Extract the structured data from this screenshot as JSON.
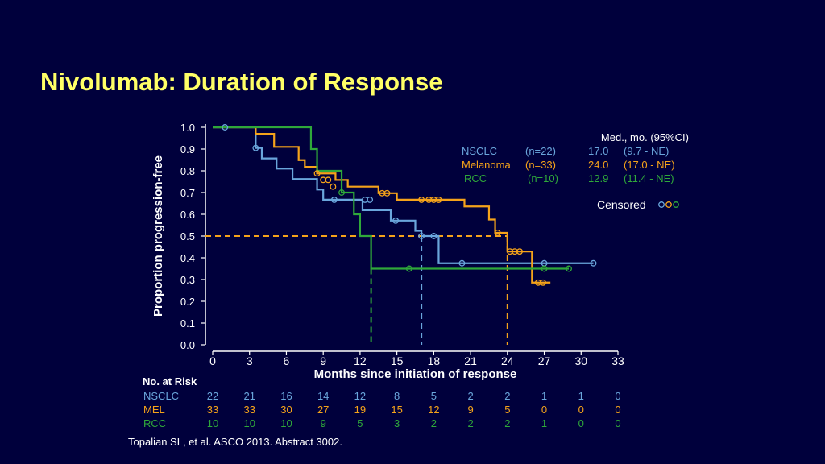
{
  "slide": {
    "title": "Nivolumab: Duration of Response",
    "reference": "Topalian SL, et al. ASCO 2013. Abstract 3002."
  },
  "colors": {
    "background": "#00003c",
    "title": "#ffff66",
    "NSCLC": "#6aa6dc",
    "MEL": "#f5a31a",
    "RCC": "#2fa83a",
    "text": "#ffffff"
  },
  "chart_data": {
    "type": "line",
    "subtype": "kaplan-meier step",
    "xlabel": "Months since initiation of response",
    "ylabel": "Proportion progression-free",
    "xlim": [
      0,
      33
    ],
    "ylim": [
      0,
      1.0
    ],
    "x_ticks": [
      "0",
      "3",
      "6",
      "9",
      "12",
      "15",
      "18",
      "21",
      "24",
      "27",
      "30",
      "33"
    ],
    "y_ticks": [
      "0.0",
      "0.1",
      "0.2",
      "0.3",
      "0.4",
      "0.5",
      "0.6",
      "0.7",
      "0.8",
      "0.9",
      "1.0"
    ],
    "median_line_y": 0.5,
    "legend": {
      "header": "Med., mo. (95%CI)",
      "rows": [
        {
          "name": "NSCLC",
          "n": "(n=22)",
          "median": "17.0",
          "ci": "(9.7 - NE)",
          "color": "#6aa6dc"
        },
        {
          "name": "Melanoma",
          "n": "(n=33)",
          "median": "24.0",
          "ci": "(17.0 - NE)",
          "color": "#f5a31a"
        },
        {
          "name": "RCC",
          "n": "(n=10)",
          "median": "12.9",
          "ci": "(11.4 - NE)",
          "color": "#2fa83a"
        }
      ],
      "censored_label": "Censored"
    },
    "series": [
      {
        "name": "NSCLC",
        "color": "#6aa6dc",
        "steps": [
          [
            0,
            1.0
          ],
          [
            3.5,
            0.905
          ],
          [
            4.0,
            0.857
          ],
          [
            5.2,
            0.81
          ],
          [
            6.5,
            0.762
          ],
          [
            8.5,
            0.714
          ],
          [
            9.0,
            0.667
          ],
          [
            12.2,
            0.619
          ],
          [
            14.5,
            0.571
          ],
          [
            16.5,
            0.524
          ],
          [
            17.0,
            0.5
          ],
          [
            18.4,
            0.375
          ],
          [
            31.0,
            0.375
          ]
        ],
        "median": 17.0,
        "censored": [
          [
            1.0,
            1.0
          ],
          [
            3.5,
            0.905
          ],
          [
            9.9,
            0.667
          ],
          [
            12.4,
            0.667
          ],
          [
            12.8,
            0.667
          ],
          [
            14.9,
            0.571
          ],
          [
            17.0,
            0.5
          ],
          [
            18.0,
            0.5
          ],
          [
            20.3,
            0.375
          ],
          [
            27.0,
            0.375
          ],
          [
            31.0,
            0.375
          ]
        ]
      },
      {
        "name": "MEL",
        "color": "#f5a31a",
        "steps": [
          [
            0,
            1.0
          ],
          [
            3.5,
            0.97
          ],
          [
            5.0,
            0.91
          ],
          [
            7.0,
            0.849
          ],
          [
            7.5,
            0.818
          ],
          [
            8.5,
            0.788
          ],
          [
            10.0,
            0.758
          ],
          [
            11.0,
            0.727
          ],
          [
            13.5,
            0.697
          ],
          [
            15.0,
            0.667
          ],
          [
            17.0,
            0.667
          ],
          [
            20.5,
            0.636
          ],
          [
            22.5,
            0.576
          ],
          [
            23.0,
            0.515
          ],
          [
            24.0,
            0.5
          ],
          [
            24.0,
            0.429
          ],
          [
            24.5,
            0.429
          ],
          [
            26.0,
            0.286
          ],
          [
            27.5,
            0.286
          ]
        ],
        "median": 24.0,
        "censored": [
          [
            8.5,
            0.788
          ],
          [
            9.0,
            0.758
          ],
          [
            9.4,
            0.758
          ],
          [
            9.8,
            0.727
          ],
          [
            13.8,
            0.697
          ],
          [
            14.2,
            0.697
          ],
          [
            17.0,
            0.667
          ],
          [
            17.6,
            0.667
          ],
          [
            18.0,
            0.667
          ],
          [
            18.4,
            0.667
          ],
          [
            23.2,
            0.515
          ],
          [
            24.2,
            0.429
          ],
          [
            24.6,
            0.429
          ],
          [
            25.0,
            0.429
          ],
          [
            26.5,
            0.286
          ],
          [
            26.9,
            0.286
          ]
        ]
      },
      {
        "name": "RCC",
        "color": "#2fa83a",
        "steps": [
          [
            0,
            1.0
          ],
          [
            8.0,
            0.9
          ],
          [
            8.5,
            0.8
          ],
          [
            10.5,
            0.7
          ],
          [
            11.5,
            0.6
          ],
          [
            12.0,
            0.5
          ],
          [
            12.9,
            0.35
          ],
          [
            29.0,
            0.35
          ]
        ],
        "median": 12.9,
        "censored": [
          [
            10.5,
            0.7
          ],
          [
            16.0,
            0.35
          ],
          [
            27.0,
            0.35
          ],
          [
            29.0,
            0.35
          ]
        ]
      }
    ]
  },
  "risk_table": {
    "header": "No. at Risk",
    "rows": [
      {
        "label": "NSCLC",
        "color": "#6aa6dc",
        "values": [
          "22",
          "21",
          "16",
          "14",
          "12",
          "8",
          "5",
          "2",
          "2",
          "1",
          "1",
          "0"
        ]
      },
      {
        "label": "MEL",
        "color": "#f5a31a",
        "values": [
          "33",
          "33",
          "30",
          "27",
          "19",
          "15",
          "12",
          "9",
          "5",
          "0",
          "0",
          "0"
        ]
      },
      {
        "label": "RCC",
        "color": "#2fa83a",
        "values": [
          "10",
          "10",
          "10",
          "9",
          "5",
          "3",
          "2",
          "2",
          "2",
          "1",
          "0",
          "0"
        ]
      }
    ]
  }
}
